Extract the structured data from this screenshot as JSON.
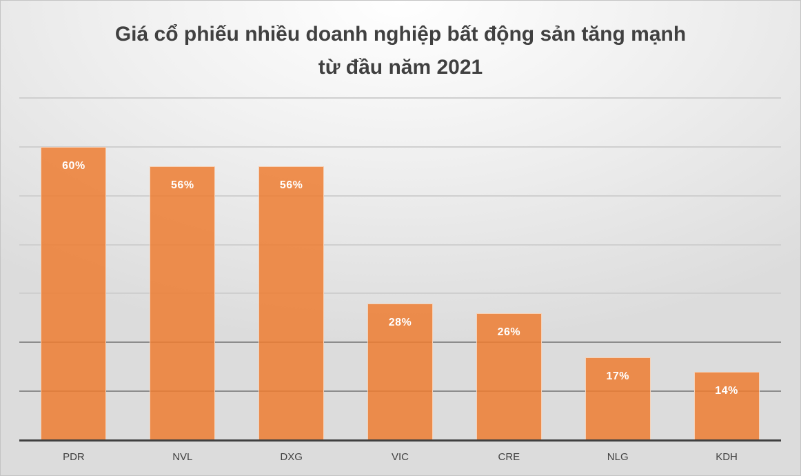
{
  "chart_data": {
    "type": "bar",
    "title": "Giá cổ phiếu nhiều doanh nghiệp bất động sản tăng mạnh từ đầu năm 2021",
    "title_lines": [
      "Giá cổ phiếu nhiều doanh nghiệp bất động sản tăng mạnh",
      "từ đầu năm 2021"
    ],
    "categories": [
      "PDR",
      "NVL",
      "DXG",
      "VIC",
      "CRE",
      "NLG",
      "KDH"
    ],
    "values": [
      60,
      56,
      56,
      28,
      26,
      17,
      14
    ],
    "data_labels": [
      "60%",
      "56%",
      "56%",
      "28%",
      "26%",
      "17%",
      "14%"
    ],
    "xlabel": "",
    "ylabel": "",
    "ylim": [
      0,
      70
    ],
    "y_unit": "%",
    "gridlines": [
      10,
      20,
      30,
      40,
      50,
      60,
      70
    ],
    "grid": true,
    "legend": null,
    "bar_color": "#ED7D31"
  }
}
